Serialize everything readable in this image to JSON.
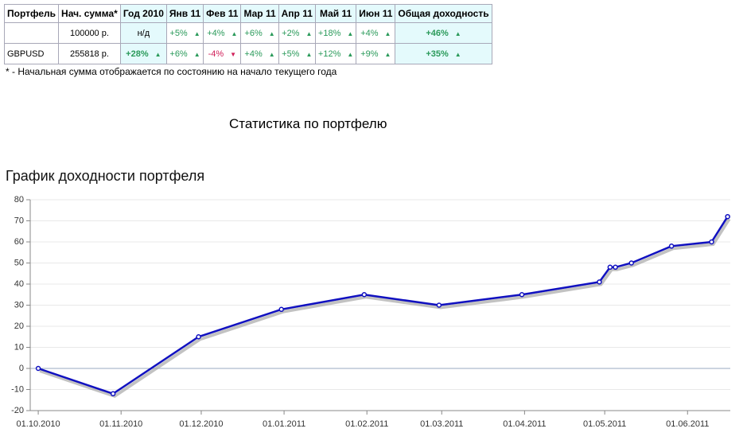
{
  "table": {
    "header": [
      "Портфель",
      "Нач. сумма*",
      "Год 2010",
      "Янв 11",
      "Фев 11",
      "Мар 11",
      "Апр 11",
      "Май 11",
      "Июн 11",
      "Общая доходность"
    ],
    "rows": [
      [
        null,
        "100000 р.",
        "н/д",
        "+5%",
        "+4%",
        "+6%",
        "+2%",
        "+18%",
        "+4%",
        "+46%"
      ],
      [
        "GBPUSD",
        "255818 р.",
        "+28%",
        "+6%",
        "-4%",
        "+4%",
        "+5%",
        "+12%",
        "+9%",
        "+35%"
      ]
    ]
  },
  "note": "* - Начальная сумма отображается по состоянию на начало текущего года",
  "heading": "Статистика по портфелю",
  "chart_data": {
    "type": "line",
    "title": "График доходности портфеля",
    "color": "#1010c0",
    "x": [
      "01.10.2010",
      "29.10.2010",
      "30.11.2010",
      "31.12.2010",
      "31.01.2011",
      "28.02.2011",
      "31.03.2011",
      "29.04.2011",
      "03.05.2011",
      "05.05.2011",
      "11.05.2011",
      "26.05.2011",
      "10.06.2011",
      "16.06.2011"
    ],
    "values": [
      0,
      -12,
      15,
      28,
      35,
      30,
      35,
      41,
      48,
      48,
      50,
      58,
      60,
      72
    ],
    "xlim": [
      "28.09.2010",
      "17.06.2011"
    ],
    "xticks": [
      "01.10.2010",
      "01.11.2010",
      "01.12.2010",
      "01.01.2011",
      "01.02.2011",
      "01.03.2011",
      "01.04.2011",
      "01.05.2011",
      "01.06.2011"
    ],
    "ylim": [
      -20,
      80
    ],
    "yticks": [
      -20,
      -10,
      0,
      10,
      20,
      30,
      40,
      50,
      60,
      70,
      80
    ],
    "grid": true
  }
}
